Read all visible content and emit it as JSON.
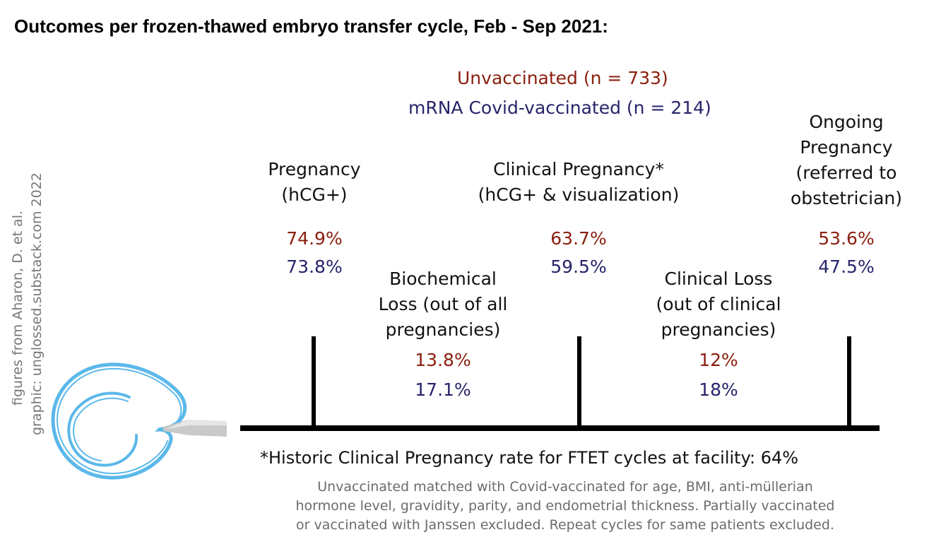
{
  "title": "Outcomes per frozen-thawed embryo transfer cycle, Feb - Sep 2021:",
  "legend": {
    "unvaccinated": "Unvaccinated (n = 733)",
    "vaccinated": "mRNA Covid-vaccinated (n = 214)"
  },
  "colors": {
    "unvaccinated": "#8b2010",
    "vaccinated": "#27246a",
    "logo": "#5bb8ea"
  },
  "credits": {
    "line1": "figures from Aharon, D. et al.",
    "line2": "graphic: unglossed.substack.com 2022"
  },
  "stages": {
    "pregnancy": {
      "label1": "Pregnancy",
      "label2": "(hCG+)",
      "unvaccinated": "74.9%",
      "vaccinated": "73.8%"
    },
    "clinical_pregnancy": {
      "label1": "Clinical Pregnancy*",
      "label2": "(hCG+ & visualization)",
      "unvaccinated": "63.7%",
      "vaccinated": "59.5%"
    },
    "ongoing_pregnancy": {
      "label1": "Ongoing",
      "label2": "Pregnancy",
      "label3": "(referred to",
      "label4": "obstetrician)",
      "unvaccinated": "53.6%",
      "vaccinated": "47.5%"
    }
  },
  "losses": {
    "biochemical": {
      "label1": "Biochemical",
      "label2": "Loss (out of all",
      "label3": "pregnancies)",
      "unvaccinated": "13.8%",
      "vaccinated": "17.1%"
    },
    "clinical": {
      "label1": "Clinical Loss",
      "label2": "(out of clinical",
      "label3": "pregnancies)",
      "unvaccinated": "12%",
      "vaccinated": "18%"
    }
  },
  "footnote": "*Historic Clinical Pregnancy rate for FTET cycles at facility: 64%",
  "note": {
    "line1": "Unvaccinated matched with Covid-vaccinated for age, BMI, anti-müllerian",
    "line2": "hormone level, gravidity, parity, and endometrial thickness. Partially vaccinated",
    "line3": "or vaccinated with Janssen excluded. Repeat cycles for same patients excluded."
  }
}
